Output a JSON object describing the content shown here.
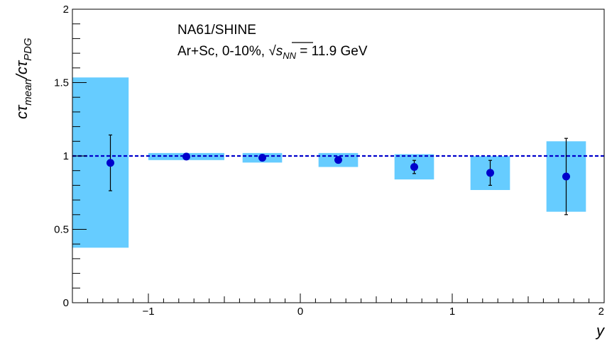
{
  "chart_data": {
    "type": "scatter",
    "title": "",
    "xlabel": "y",
    "ylabel": {
      "main": "cτ",
      "sub1": "mean",
      "sep": "/cτ",
      "sub2": "PDG"
    },
    "xlim": [
      -1.5,
      2
    ],
    "ylim": [
      0,
      2
    ],
    "x_ticks": [
      -1,
      0,
      1,
      2
    ],
    "x_tick_labels": [
      "−1",
      "0",
      "1",
      "2"
    ],
    "y_ticks": [
      0,
      0.5,
      1,
      1.5,
      2
    ],
    "y_tick_labels": [
      "0",
      "0.5",
      "1",
      "1.5",
      "2"
    ],
    "reference_line": {
      "y": 1,
      "style": "dashed",
      "color": "#0000cc"
    },
    "annotation": {
      "line1": "NA61/SHINE",
      "line2_prefix": "Ar+Sc, 0-10%, ",
      "sqrt_symbol": "√",
      "sqrt_var": "s",
      "sqrt_sub": "NN",
      "line2_suffix": " = 11.9 GeV"
    },
    "colors": {
      "marker": "#0000cc",
      "sys_box": "#66ccff",
      "stat_bar": "#000000"
    },
    "series": [
      {
        "points": [
          {
            "x": -1.25,
            "y": 0.953,
            "stat_err": 0.19,
            "sys_low": 0.375,
            "sys_high": 1.535,
            "x_low": -1.5,
            "x_high": -1.13
          },
          {
            "x": -0.75,
            "y": 0.996,
            "stat_err": 0.01,
            "sys_low": 0.972,
            "sys_high": 1.02,
            "x_low": -1.0,
            "x_high": -0.5
          },
          {
            "x": -0.25,
            "y": 0.988,
            "stat_err": 0.012,
            "sys_low": 0.955,
            "sys_high": 1.02,
            "x_low": -0.38,
            "x_high": -0.12
          },
          {
            "x": 0.25,
            "y": 0.973,
            "stat_err": 0.015,
            "sys_low": 0.925,
            "sys_high": 1.02,
            "x_low": 0.12,
            "x_high": 0.38
          },
          {
            "x": 0.75,
            "y": 0.925,
            "stat_err": 0.045,
            "sys_low": 0.84,
            "sys_high": 1.012,
            "x_low": 0.62,
            "x_high": 0.88
          },
          {
            "x": 1.25,
            "y": 0.885,
            "stat_err": 0.085,
            "sys_low": 0.768,
            "sys_high": 0.998,
            "x_low": 1.12,
            "x_high": 1.38
          },
          {
            "x": 1.75,
            "y": 0.86,
            "stat_err": 0.26,
            "sys_low": 0.62,
            "sys_high": 1.1,
            "x_low": 1.62,
            "x_high": 1.88
          }
        ]
      }
    ]
  }
}
